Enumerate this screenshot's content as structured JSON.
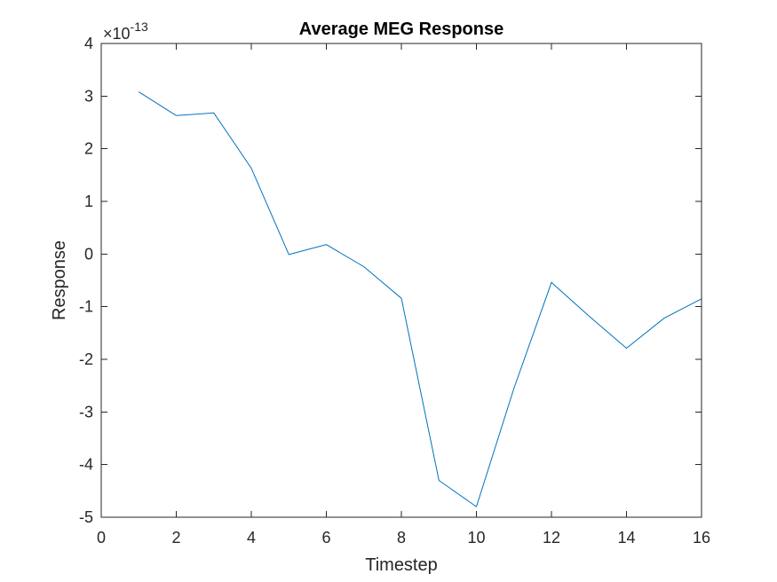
{
  "chart_data": {
    "type": "line",
    "title": "Average MEG Response",
    "xlabel": "Timestep",
    "ylabel": "Response",
    "exponent_base": "×10",
    "exponent_power": "-13",
    "xlim": [
      0,
      16
    ],
    "ylim": [
      -5,
      4
    ],
    "xticks": [
      0,
      2,
      4,
      6,
      8,
      10,
      12,
      14,
      16
    ],
    "yticks": [
      -5,
      -4,
      -3,
      -2,
      -1,
      0,
      1,
      2,
      3,
      4
    ],
    "grid": false,
    "series": [
      {
        "color": "#0072BD",
        "x": [
          1,
          2,
          3,
          4,
          5,
          6,
          7,
          8,
          9,
          10,
          11,
          12,
          13,
          14,
          15,
          16
        ],
        "y": [
          3.08,
          2.63,
          2.68,
          1.63,
          -0.01,
          0.18,
          -0.24,
          -0.84,
          -4.3,
          -4.8,
          -2.55,
          -0.54,
          -1.18,
          -1.79,
          -1.22,
          -0.85
        ]
      }
    ]
  }
}
